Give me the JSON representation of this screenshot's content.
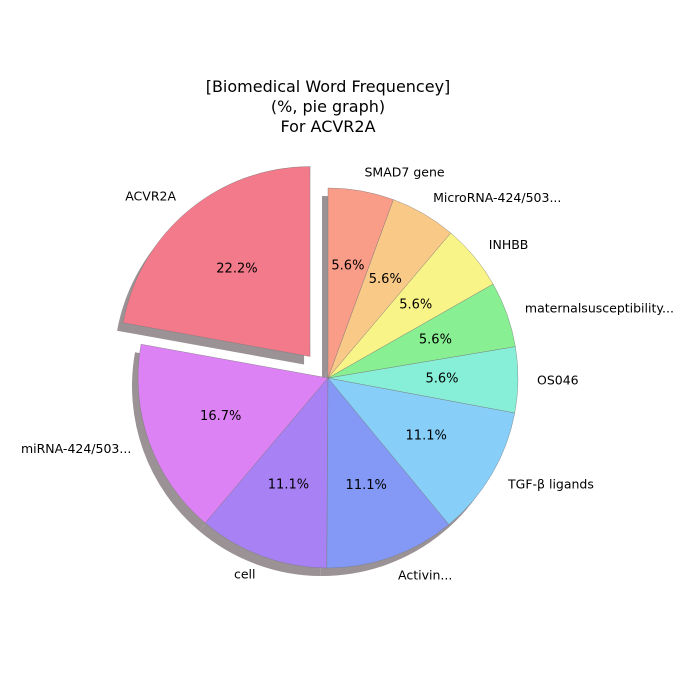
{
  "chart_data": {
    "type": "pie",
    "title": [
      "[Biomedical Word Frequencey]",
      "(%, pie graph)",
      "For ACVR2A"
    ],
    "categories": [
      "ACVR2A",
      "miRNA-424/503...",
      "cell",
      "Activin...",
      "TGF-β ligands",
      "OS046",
      "maternalsusceptibility...",
      "INHBB",
      "MicroRNA-424/503...",
      "SMAD7 gene"
    ],
    "values": [
      22.2,
      16.7,
      11.1,
      11.1,
      11.1,
      5.6,
      5.6,
      5.6,
      5.6,
      5.6
    ],
    "value_labels": [
      "22.2%",
      "16.7%",
      "11.1%",
      "11.1%",
      "11.1%",
      "5.6%",
      "5.6%",
      "5.6%",
      "5.6%",
      "5.6%"
    ],
    "colors": [
      "#f27a8a",
      "#dd82f5",
      "#a882f5",
      "#8499f5",
      "#87cef8",
      "#87efd8",
      "#88ef93",
      "#f8f488",
      "#f9c988",
      "#f99c88"
    ],
    "exploded": [
      "ACVR2A"
    ],
    "start_angle_deg": 90,
    "direction": "counterclockwise",
    "shadow": true
  }
}
